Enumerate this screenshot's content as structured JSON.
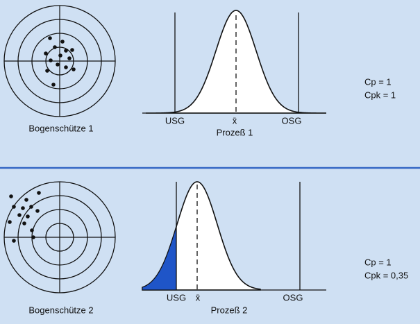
{
  "panels": [
    {
      "archer_label": "Bogenschütze 1",
      "process_label": "Prozeß 1",
      "usg": "USG",
      "mean": "x̄",
      "osg": "OSG",
      "cp": "Cp = 1",
      "cpk": "Cpk = 1"
    },
    {
      "archer_label": "Bogenschütze 2",
      "process_label": "Prozeß 2",
      "usg": "USG",
      "mean": "x̄",
      "osg": "OSG",
      "cp": "Cp = 1",
      "cpk": "Cpk = 0,35"
    }
  ]
}
